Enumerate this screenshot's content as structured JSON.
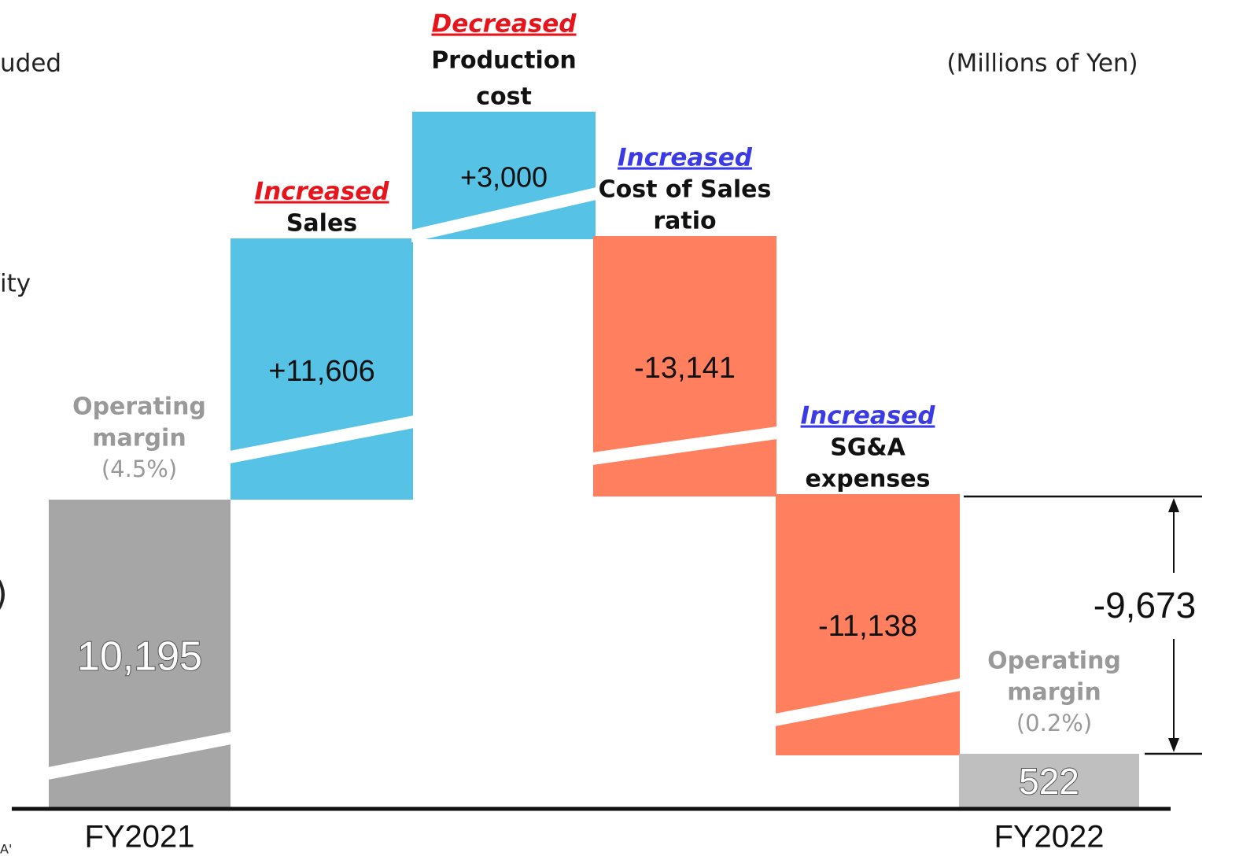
{
  "chart_data": {
    "type": "waterfall",
    "unit": "(Millions of Yen)",
    "categories": [
      "FY2021",
      null,
      null,
      null,
      null,
      "FY2022"
    ],
    "values": [
      10195,
      11606,
      3000,
      -13141,
      -11138,
      522
    ],
    "value_labels": [
      "10,195",
      "+11,606",
      "+3,000",
      "-13,141",
      "-11,138",
      "522"
    ],
    "colors": [
      "#a6a6a6",
      "#56c3e6",
      "#56c3e6",
      "#ff7f5f",
      "#ff7f5f",
      "#bfbfbf"
    ],
    "step_labels": [
      null,
      {
        "tag": "Increased",
        "tag_color": "#e8141b",
        "lines": [
          "Sales"
        ]
      },
      {
        "tag": "Decreased",
        "tag_color": "#e8141b",
        "lines": [
          "Production",
          "cost"
        ]
      },
      {
        "tag": "Increased",
        "tag_color": "#3a3ae6",
        "lines": [
          "Cost of Sales",
          "ratio"
        ]
      },
      {
        "tag": "Increased",
        "tag_color": "#3a3ae6",
        "lines": [
          "SG&A",
          "expenses"
        ]
      },
      null
    ],
    "margin_labels": [
      {
        "lines": [
          "Operating",
          "margin"
        ],
        "rate": "(4.5%)"
      },
      null,
      null,
      null,
      null,
      {
        "lines": [
          "Operating",
          "margin"
        ],
        "rate": "(0.2%)"
      }
    ],
    "difference": {
      "value": -9673,
      "label": "-9,673"
    },
    "side_texts": [
      "uded",
      "ity",
      ")",
      "A'"
    ]
  }
}
